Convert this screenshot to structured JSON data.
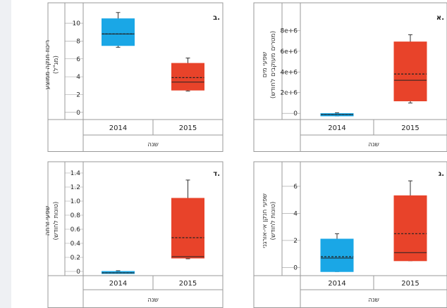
{
  "colors": {
    "blue": "#1aa7e6",
    "red": "#e8432a",
    "frame": "#9a9a9a"
  },
  "chart_data": [
    {
      "type": "box",
      "panel_label": "א.",
      "title": "",
      "xlabel": "שנה",
      "ylabel_lines": [
        "שפעי מים",
        "(מטרים מעוקבים לחודש)"
      ],
      "categories": [
        "2014",
        "2015"
      ],
      "yticks": [
        "0",
        "2e+6",
        "4e+6",
        "6e+6",
        "8e+6"
      ],
      "ytick_values": [
        0,
        2000000,
        4000000,
        6000000,
        8000000
      ],
      "ylim": [
        -600000,
        10000000
      ],
      "boxes": [
        {
          "category": "2014",
          "color": "#1aa7e6",
          "whisker_low": -250000,
          "q1": -250000,
          "median": -120000,
          "mean": -120000,
          "q3": -20000,
          "whisker_high": 60000
        },
        {
          "category": "2015",
          "color": "#e8432a",
          "whisker_low": 1000000,
          "q1": 1200000,
          "median": 3200000,
          "mean": 3800000,
          "q3": 6900000,
          "whisker_high": 7600000
        }
      ],
      "grid": false
    },
    {
      "type": "box",
      "panel_label": "ב.",
      "title": "",
      "xlabel": "שנה",
      "ylabel_lines": [
        "ריכוז חנקה ממוצע",
        "(מג\"ל)"
      ],
      "categories": [
        "2014",
        "2015"
      ],
      "yticks": [
        "0",
        "2",
        "4",
        "6",
        "8",
        "10"
      ],
      "ytick_values": [
        0,
        2,
        4,
        6,
        8,
        10
      ],
      "ylim": [
        -0.8,
        11.5
      ],
      "boxes": [
        {
          "category": "2014",
          "color": "#1aa7e6",
          "whisker_low": 7.3,
          "q1": 7.5,
          "median": 8.8,
          "mean": 8.8,
          "q3": 10.5,
          "whisker_high": 11.2
        },
        {
          "category": "2015",
          "color": "#e8432a",
          "whisker_low": 2.4,
          "q1": 2.5,
          "median": 3.4,
          "mean": 3.9,
          "q3": 5.5,
          "whisker_high": 6.1
        }
      ],
      "grid": false
    },
    {
      "type": "box",
      "panel_label": "ג.",
      "title": "",
      "xlabel": "שנה",
      "ylabel_lines": [
        "שפעי חנקן אי-אורגני",
        "(טונות לחודש)"
      ],
      "categories": [
        "2014",
        "2015"
      ],
      "yticks": [
        "0",
        "2",
        "4",
        "6"
      ],
      "ytick_values": [
        0,
        2,
        4,
        6
      ],
      "ylim": [
        -0.6,
        7.5
      ],
      "boxes": [
        {
          "category": "2014",
          "color": "#1aa7e6",
          "whisker_low": -0.3,
          "q1": -0.3,
          "median": 0.7,
          "mean": 0.8,
          "q3": 2.1,
          "whisker_high": 2.5
        },
        {
          "category": "2015",
          "color": "#e8432a",
          "whisker_low": 0.5,
          "q1": 0.5,
          "median": 1.1,
          "mean": 2.5,
          "q3": 5.3,
          "whisker_high": 6.4
        }
      ],
      "grid": false
    },
    {
      "type": "box",
      "panel_label": "ד.",
      "title": "",
      "xlabel": "שנה",
      "ylabel_lines": [
        "שפעי זרחה",
        "(טונות לחודש)"
      ],
      "categories": [
        "2014",
        "2015"
      ],
      "yticks": [
        "0",
        "0.2",
        "0.4",
        "0.6",
        "0.8",
        "1.0",
        "1.2",
        "1.4"
      ],
      "ytick_values": [
        0,
        0.2,
        0.4,
        0.6,
        0.8,
        1.0,
        1.2,
        1.4
      ],
      "ylim": [
        -0.06,
        1.5
      ],
      "boxes": [
        {
          "category": "2014",
          "color": "#1aa7e6",
          "whisker_low": -0.03,
          "q1": -0.03,
          "median": -0.02,
          "mean": -0.02,
          "q3": 0.0,
          "whisker_high": 0.01
        },
        {
          "category": "2015",
          "color": "#e8432a",
          "whisker_low": 0.18,
          "q1": 0.19,
          "median": 0.21,
          "mean": 0.48,
          "q3": 1.04,
          "whisker_high": 1.3
        }
      ],
      "grid": false
    }
  ]
}
